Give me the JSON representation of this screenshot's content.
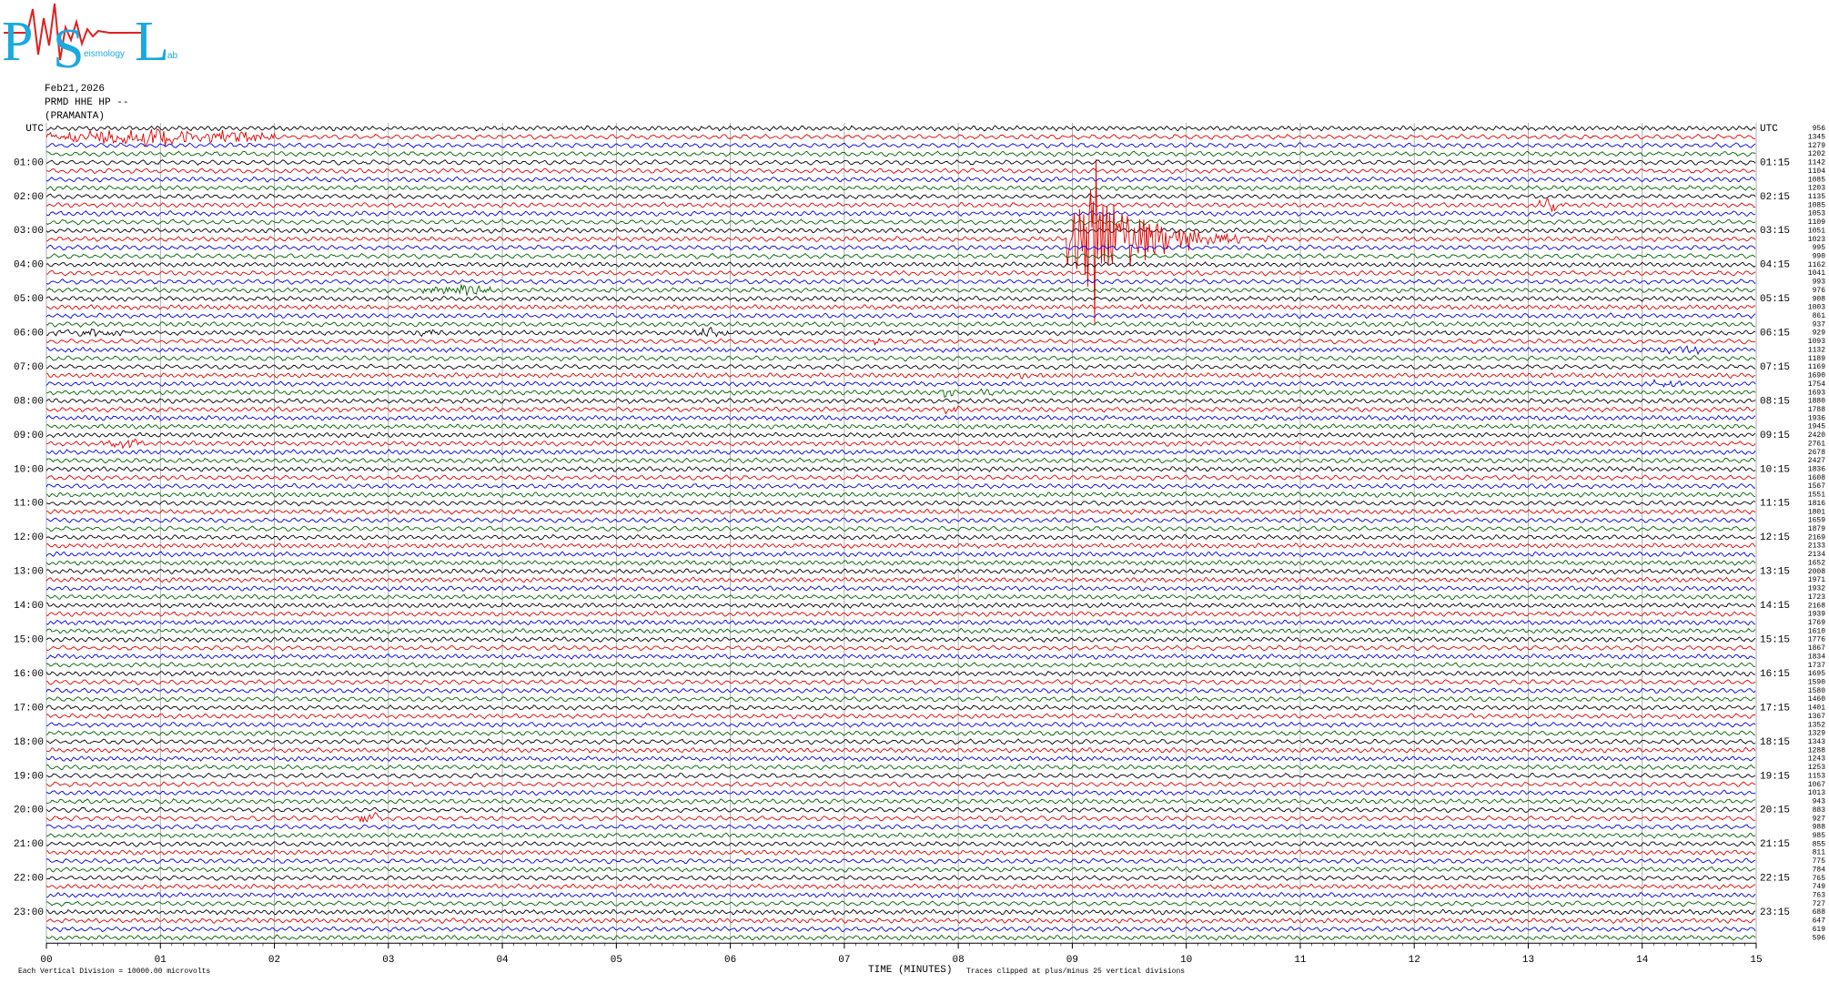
{
  "logo": {
    "letters": [
      "P",
      "S",
      "L"
    ],
    "small": [
      "eismology",
      "ab"
    ]
  },
  "header": {
    "date": "Feb21,2026",
    "station": "PRMD HHE HP --",
    "site": "(PRAMANTA)"
  },
  "left_labels": [
    "UTC",
    "01:00",
    "02:00",
    "03:00",
    "04:00",
    "05:00",
    "06:00",
    "07:00",
    "08:00",
    "09:00",
    "10:00",
    "11:00",
    "12:00",
    "13:00",
    "14:00",
    "15:00",
    "16:00",
    "17:00",
    "18:00",
    "19:00",
    "20:00",
    "21:00",
    "22:00",
    "23:00"
  ],
  "right_labels": [
    "UTC",
    "01:15",
    "02:15",
    "03:15",
    "04:15",
    "05:15",
    "06:15",
    "07:15",
    "08:15",
    "09:15",
    "10:15",
    "11:15",
    "12:15",
    "13:15",
    "14:15",
    "15:15",
    "16:15",
    "17:15",
    "18:15",
    "19:15",
    "20:15",
    "21:15",
    "22:15",
    "23:15"
  ],
  "scale_labels": [
    "956",
    "1345",
    "1279",
    "1202",
    "1142",
    "1104",
    "1085",
    "1203",
    "1135",
    "1085",
    "1053",
    "1109",
    "1051",
    "1023",
    "995",
    "990",
    "1162",
    "1041",
    "993",
    "976",
    "908",
    "1003",
    "861",
    "937",
    "929",
    "1093",
    "1132",
    "1189",
    "1169",
    "1690",
    "1754",
    "1693",
    "1880",
    "1788",
    "1936",
    "1945",
    "2420",
    "2761",
    "2678",
    "2427",
    "1836",
    "1608",
    "1567",
    "1551",
    "1816",
    "1801",
    "1659",
    "1879",
    "2169",
    "2133",
    "2134",
    "1652",
    "2008",
    "1971",
    "1932",
    "1723",
    "2168",
    "1939",
    "1769",
    "1610",
    "1776",
    "1867",
    "1834",
    "1737",
    "1695",
    "1590",
    "1580",
    "1460",
    "1401",
    "1367",
    "1352",
    "1329",
    "1343",
    "1288",
    "1243",
    "1253",
    "1153",
    "1067",
    "1013",
    "943",
    "883",
    "927",
    "988",
    "985",
    "855",
    "811",
    "775",
    "784",
    "765",
    "749",
    "763",
    "727",
    "688",
    "647",
    "619",
    "596"
  ],
  "x_labels": [
    "00",
    "01",
    "02",
    "03",
    "04",
    "05",
    "06",
    "07",
    "08",
    "09",
    "10",
    "11",
    "12",
    "13",
    "14",
    "15"
  ],
  "footer": {
    "division": "Each Vertical Division = 10000.00 microvolts",
    "axis_title": "TIME (MINUTES)",
    "clip_note": "Traces clipped at plus/minus 25 vertical divisions"
  }
}
